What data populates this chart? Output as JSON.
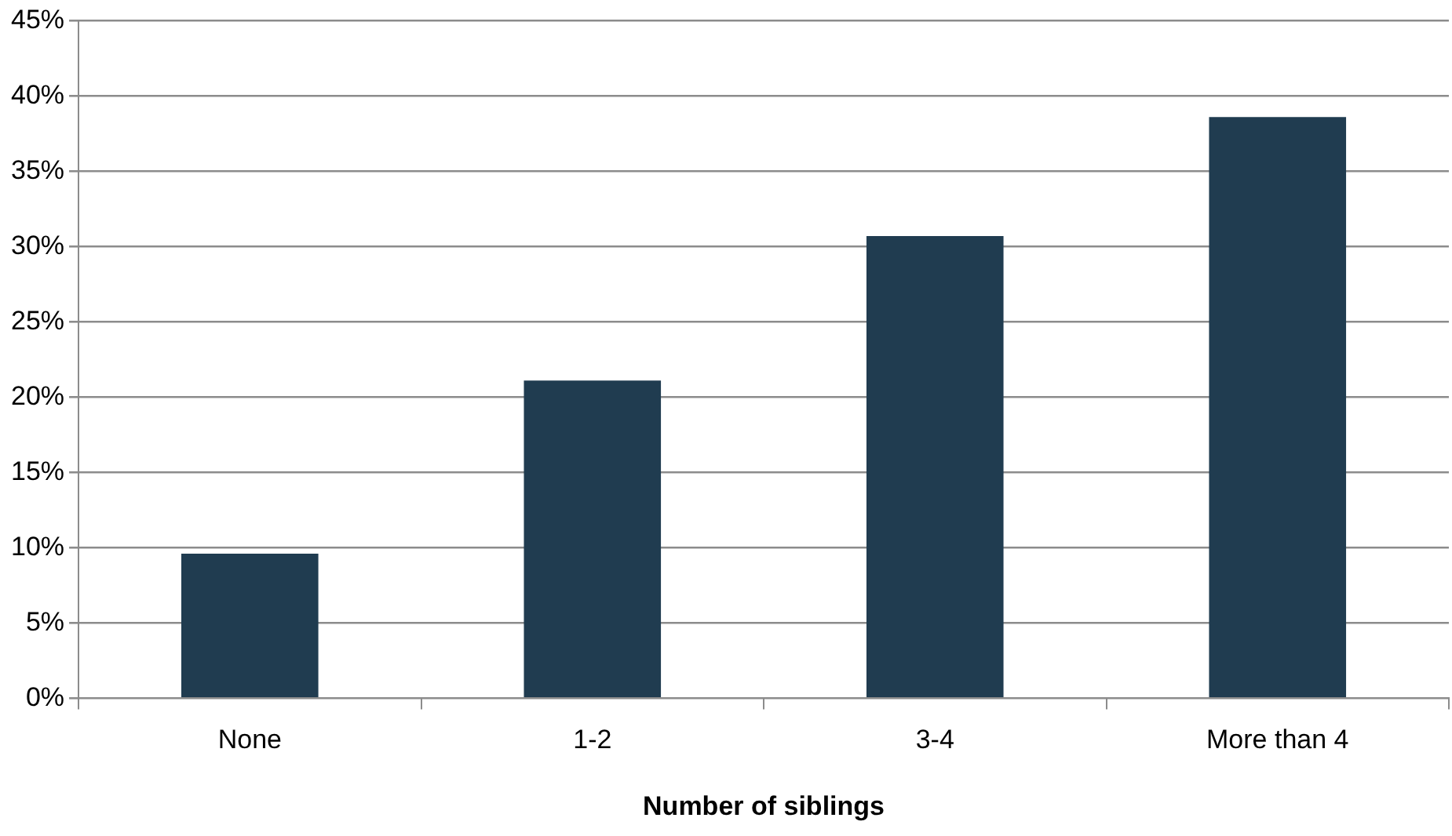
{
  "chart_data": {
    "type": "bar",
    "xlabel": "Number of siblings",
    "categories": [
      "None",
      "1-2",
      "3-4",
      "More than 4"
    ],
    "values": [
      9.6,
      21.1,
      30.7,
      38.6
    ],
    "color": "#203c50",
    "ylim": [
      0,
      45
    ],
    "yticks": [
      {
        "value": 0,
        "label": "0%"
      },
      {
        "value": 5,
        "label": "5%"
      },
      {
        "value": 10,
        "label": "10%"
      },
      {
        "value": 15,
        "label": "15%"
      },
      {
        "value": 20,
        "label": "20%"
      },
      {
        "value": 25,
        "label": "25%"
      },
      {
        "value": 30,
        "label": "30%"
      },
      {
        "value": 35,
        "label": "35%"
      },
      {
        "value": 40,
        "label": "40%"
      },
      {
        "value": 45,
        "label": "45%"
      }
    ],
    "grid": "y",
    "legend": false
  }
}
